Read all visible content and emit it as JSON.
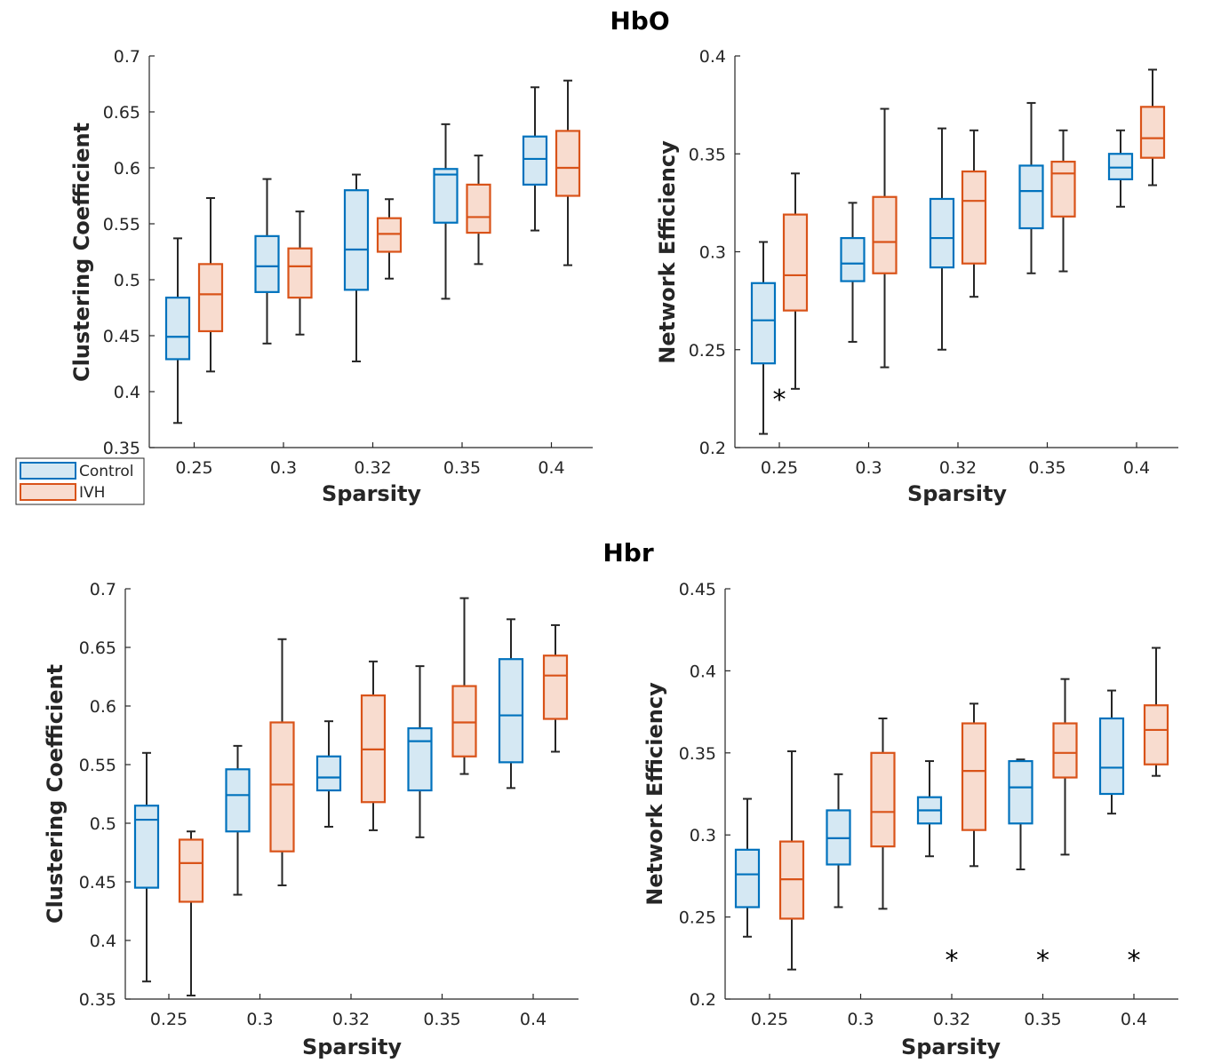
{
  "sections": [
    {
      "title": "HbO"
    },
    {
      "title": "Hbr"
    }
  ],
  "colors": {
    "control_edge": "#0072BD",
    "control_fill": "#d5e8f3",
    "ivh_edge": "#D95319",
    "ivh_fill": "#f8dccf",
    "whisker": "#262626"
  },
  "legend": {
    "items": [
      {
        "label": "Control",
        "group": "control"
      },
      {
        "label": "IVH",
        "group": "ivh"
      }
    ]
  },
  "chart_data": [
    {
      "type": "box",
      "section": "HbO",
      "xlabel": "Sparsity",
      "ylabel": "Clustering Coefficient",
      "categories": [
        "0.25",
        "0.3",
        "0.32",
        "0.35",
        "0.4"
      ],
      "ylim": [
        0.35,
        0.7
      ],
      "yticks": [
        "0.35",
        "0.4",
        "0.45",
        "0.5",
        "0.55",
        "0.6",
        "0.65",
        "0.7"
      ],
      "series": [
        {
          "name": "Control",
          "group": "control",
          "boxes": [
            {
              "min": 0.372,
              "q1": 0.429,
              "median": 0.449,
              "q3": 0.484,
              "max": 0.537
            },
            {
              "min": 0.443,
              "q1": 0.489,
              "median": 0.512,
              "q3": 0.539,
              "max": 0.59
            },
            {
              "min": 0.427,
              "q1": 0.491,
              "median": 0.527,
              "q3": 0.58,
              "max": 0.594
            },
            {
              "min": 0.483,
              "q1": 0.551,
              "median": 0.594,
              "q3": 0.599,
              "max": 0.639
            },
            {
              "min": 0.544,
              "q1": 0.585,
              "median": 0.608,
              "q3": 0.628,
              "max": 0.672
            }
          ]
        },
        {
          "name": "IVH",
          "group": "ivh",
          "boxes": [
            {
              "min": 0.418,
              "q1": 0.454,
              "median": 0.487,
              "q3": 0.514,
              "max": 0.573
            },
            {
              "min": 0.451,
              "q1": 0.484,
              "median": 0.512,
              "q3": 0.528,
              "max": 0.561
            },
            {
              "min": 0.501,
              "q1": 0.525,
              "median": 0.541,
              "q3": 0.555,
              "max": 0.572
            },
            {
              "min": 0.514,
              "q1": 0.542,
              "median": 0.556,
              "q3": 0.585,
              "max": 0.611
            },
            {
              "min": 0.513,
              "q1": 0.575,
              "median": 0.6,
              "q3": 0.633,
              "max": 0.678
            }
          ]
        }
      ],
      "significance": []
    },
    {
      "type": "box",
      "section": "HbO",
      "xlabel": "Sparsity",
      "ylabel": "Network Efficiency",
      "categories": [
        "0.25",
        "0.3",
        "0.32",
        "0.35",
        "0.4"
      ],
      "ylim": [
        0.2,
        0.4
      ],
      "yticks": [
        "0.2",
        "0.25",
        "0.3",
        "0.35",
        "0.4"
      ],
      "series": [
        {
          "name": "Control",
          "group": "control",
          "boxes": [
            {
              "min": 0.207,
              "q1": 0.243,
              "median": 0.265,
              "q3": 0.284,
              "max": 0.305
            },
            {
              "min": 0.254,
              "q1": 0.285,
              "median": 0.294,
              "q3": 0.307,
              "max": 0.325
            },
            {
              "min": 0.25,
              "q1": 0.292,
              "median": 0.307,
              "q3": 0.327,
              "max": 0.363
            },
            {
              "min": 0.289,
              "q1": 0.312,
              "median": 0.331,
              "q3": 0.344,
              "max": 0.376
            },
            {
              "min": 0.323,
              "q1": 0.337,
              "median": 0.343,
              "q3": 0.35,
              "max": 0.362
            }
          ]
        },
        {
          "name": "IVH",
          "group": "ivh",
          "boxes": [
            {
              "min": 0.23,
              "q1": 0.27,
              "median": 0.288,
              "q3": 0.319,
              "max": 0.34
            },
            {
              "min": 0.241,
              "q1": 0.289,
              "median": 0.305,
              "q3": 0.328,
              "max": 0.373
            },
            {
              "min": 0.277,
              "q1": 0.294,
              "median": 0.326,
              "q3": 0.341,
              "max": 0.362
            },
            {
              "min": 0.29,
              "q1": 0.318,
              "median": 0.34,
              "q3": 0.346,
              "max": 0.362
            },
            {
              "min": 0.334,
              "q1": 0.348,
              "median": 0.358,
              "q3": 0.374,
              "max": 0.393
            }
          ]
        }
      ],
      "significance": [
        {
          "category": "0.25",
          "symbol": "*",
          "value": 0.225
        }
      ]
    },
    {
      "type": "box",
      "section": "Hbr",
      "xlabel": "Sparsity",
      "ylabel": "Clustering Coefficient",
      "categories": [
        "0.25",
        "0.3",
        "0.32",
        "0.35",
        "0.4"
      ],
      "ylim": [
        0.35,
        0.7
      ],
      "yticks": [
        "0.35",
        "0.4",
        "0.45",
        "0.5",
        "0.55",
        "0.6",
        "0.65",
        "0.7"
      ],
      "series": [
        {
          "name": "Control",
          "group": "control",
          "boxes": [
            {
              "min": 0.365,
              "q1": 0.445,
              "median": 0.503,
              "q3": 0.515,
              "max": 0.56
            },
            {
              "min": 0.439,
              "q1": 0.493,
              "median": 0.524,
              "q3": 0.546,
              "max": 0.566
            },
            {
              "min": 0.497,
              "q1": 0.528,
              "median": 0.539,
              "q3": 0.557,
              "max": 0.587
            },
            {
              "min": 0.488,
              "q1": 0.528,
              "median": 0.57,
              "q3": 0.581,
              "max": 0.634
            },
            {
              "min": 0.53,
              "q1": 0.552,
              "median": 0.592,
              "q3": 0.64,
              "max": 0.674
            }
          ]
        },
        {
          "name": "IVH",
          "group": "ivh",
          "boxes": [
            {
              "min": 0.353,
              "q1": 0.433,
              "median": 0.466,
              "q3": 0.486,
              "max": 0.493
            },
            {
              "min": 0.447,
              "q1": 0.476,
              "median": 0.533,
              "q3": 0.586,
              "max": 0.657
            },
            {
              "min": 0.494,
              "q1": 0.518,
              "median": 0.563,
              "q3": 0.609,
              "max": 0.638
            },
            {
              "min": 0.542,
              "q1": 0.557,
              "median": 0.586,
              "q3": 0.617,
              "max": 0.692
            },
            {
              "min": 0.561,
              "q1": 0.589,
              "median": 0.626,
              "q3": 0.643,
              "max": 0.669
            }
          ]
        }
      ],
      "significance": []
    },
    {
      "type": "box",
      "section": "Hbr",
      "xlabel": "Sparsity",
      "ylabel": "Network Efficiency",
      "categories": [
        "0.25",
        "0.3",
        "0.32",
        "0.35",
        "0.4"
      ],
      "ylim": [
        0.2,
        0.45
      ],
      "yticks": [
        "0.2",
        "0.25",
        "0.3",
        "0.35",
        "0.4",
        "0.45"
      ],
      "series": [
        {
          "name": "Control",
          "group": "control",
          "boxes": [
            {
              "min": 0.238,
              "q1": 0.256,
              "median": 0.276,
              "q3": 0.291,
              "max": 0.322
            },
            {
              "min": 0.256,
              "q1": 0.282,
              "median": 0.298,
              "q3": 0.315,
              "max": 0.337
            },
            {
              "min": 0.287,
              "q1": 0.307,
              "median": 0.315,
              "q3": 0.323,
              "max": 0.345
            },
            {
              "min": 0.279,
              "q1": 0.307,
              "median": 0.329,
              "q3": 0.345,
              "max": 0.346
            },
            {
              "min": 0.313,
              "q1": 0.325,
              "median": 0.341,
              "q3": 0.371,
              "max": 0.388
            }
          ]
        },
        {
          "name": "IVH",
          "group": "ivh",
          "boxes": [
            {
              "min": 0.218,
              "q1": 0.249,
              "median": 0.273,
              "q3": 0.296,
              "max": 0.351
            },
            {
              "min": 0.255,
              "q1": 0.293,
              "median": 0.314,
              "q3": 0.35,
              "max": 0.371
            },
            {
              "min": 0.281,
              "q1": 0.303,
              "median": 0.339,
              "q3": 0.368,
              "max": 0.38
            },
            {
              "min": 0.288,
              "q1": 0.335,
              "median": 0.35,
              "q3": 0.368,
              "max": 0.395
            },
            {
              "min": 0.336,
              "q1": 0.343,
              "median": 0.364,
              "q3": 0.379,
              "max": 0.414
            }
          ]
        }
      ],
      "significance": [
        {
          "category": "0.32",
          "symbol": "*",
          "value": 0.224
        },
        {
          "category": "0.35",
          "symbol": "*",
          "value": 0.224
        },
        {
          "category": "0.4",
          "symbol": "*",
          "value": 0.224
        }
      ]
    }
  ]
}
